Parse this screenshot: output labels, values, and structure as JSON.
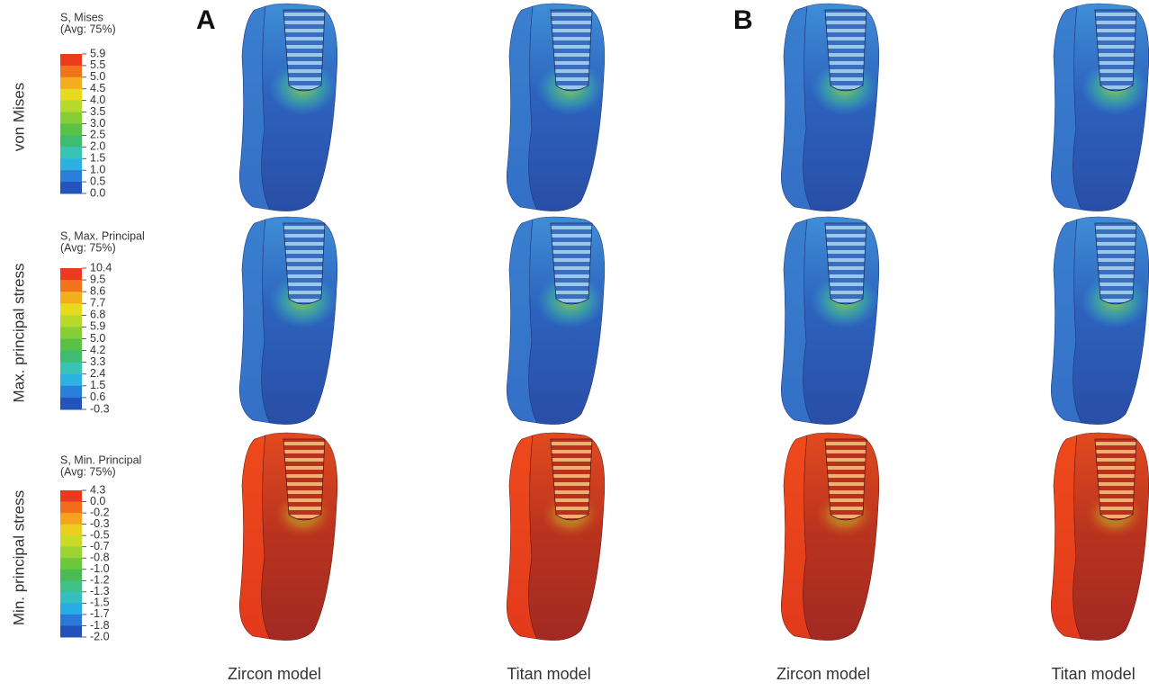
{
  "panels": [
    "A",
    "B"
  ],
  "rows": [
    {
      "label": "von Mises",
      "legend": {
        "title": "S, Mises",
        "subtitle": "(Avg: 75%)",
        "ticks": [
          "5.9",
          "5.5",
          "5.0",
          "4.5",
          "4.0",
          "3.5",
          "3.0",
          "2.5",
          "2.0",
          "1.5",
          "1.0",
          "0.5",
          "0.0"
        ]
      }
    },
    {
      "label": "Max. principal stress",
      "legend": {
        "title": "S, Max. Principal",
        "subtitle": "(Avg: 75%)",
        "ticks": [
          "10.4",
          "9.5",
          "8.6",
          "7.7",
          "6.8",
          "5.9",
          "5.0",
          "4.2",
          "3.3",
          "2.4",
          "1.5",
          "0.6",
          "-0.3"
        ]
      }
    },
    {
      "label": "Min. principal stress",
      "legend": {
        "title": "S, Min. Principal",
        "subtitle": "(Avg: 75%)",
        "ticks": [
          "4.3",
          "0.0",
          "-0.2",
          "-0.3",
          "-0.5",
          "-0.7",
          "-0.8",
          "-1.0",
          "-1.2",
          "-1.3",
          "-1.5",
          "-1.7",
          "-1.8",
          "-2.0"
        ]
      }
    }
  ],
  "columns": [
    "Zircon model",
    "Titan model",
    "Zircon model",
    "Titan model"
  ]
}
